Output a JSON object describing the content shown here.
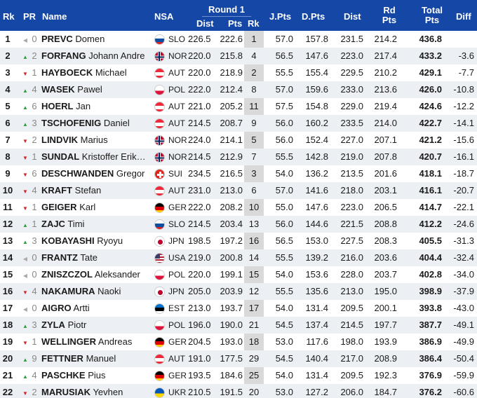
{
  "header": {
    "rk": "Rk",
    "pr": "PR",
    "name": "Name",
    "nsa": "NSA",
    "round": "Round 1",
    "dist": "Dist",
    "pts": "Pts",
    "round_rk": "Rk",
    "jpts": "J.Pts",
    "dpts": "D.Pts",
    "dist2": "Dist",
    "rd_pts": "Rd Pts",
    "total_pts": "Total Pts",
    "diff": "Diff"
  },
  "colors": {
    "header_bg": "#1447a6",
    "up": "#2e9e3e",
    "down": "#d4252b",
    "neutral": "#aaaaaa"
  },
  "rows": [
    {
      "rk": "1",
      "trend": "neutral",
      "pr": "0",
      "last": "PREVC",
      "first": "Domen",
      "nsa": "SLO",
      "dist": "226.5",
      "pts": "222.6",
      "rrk": "1",
      "jpts": "57.0",
      "dpts": "157.8",
      "odist": "231.5",
      "rdpts": "214.2",
      "total": "436.8",
      "diff": ""
    },
    {
      "rk": "2",
      "trend": "up",
      "pr": "2",
      "last": "FORFANG",
      "first": "Johann Andre",
      "nsa": "NOR",
      "dist": "220.0",
      "pts": "215.8",
      "rrk": "4",
      "jpts": "56.5",
      "dpts": "147.6",
      "odist": "223.0",
      "rdpts": "217.4",
      "total": "433.2",
      "diff": "-3.6"
    },
    {
      "rk": "3",
      "trend": "down",
      "pr": "1",
      "last": "HAYBOECK",
      "first": "Michael",
      "nsa": "AUT",
      "dist": "220.0",
      "pts": "218.9",
      "rrk": "2",
      "jpts": "55.5",
      "dpts": "155.4",
      "odist": "229.5",
      "rdpts": "210.2",
      "total": "429.1",
      "diff": "-7.7"
    },
    {
      "rk": "4",
      "trend": "up",
      "pr": "4",
      "last": "WASEK",
      "first": "Pawel",
      "nsa": "POL",
      "dist": "222.0",
      "pts": "212.4",
      "rrk": "8",
      "jpts": "57.0",
      "dpts": "159.6",
      "odist": "233.0",
      "rdpts": "213.6",
      "total": "426.0",
      "diff": "-10.8"
    },
    {
      "rk": "5",
      "trend": "up",
      "pr": "6",
      "last": "HOERL",
      "first": "Jan",
      "nsa": "AUT",
      "dist": "221.0",
      "pts": "205.2",
      "rrk": "11",
      "jpts": "57.5",
      "dpts": "154.8",
      "odist": "229.0",
      "rdpts": "219.4",
      "total": "424.6",
      "diff": "-12.2"
    },
    {
      "rk": "6",
      "trend": "up",
      "pr": "3",
      "last": "TSCHOFENIG",
      "first": "Daniel",
      "nsa": "AUT",
      "dist": "214.5",
      "pts": "208.7",
      "rrk": "9",
      "jpts": "56.0",
      "dpts": "160.2",
      "odist": "233.5",
      "rdpts": "214.0",
      "total": "422.7",
      "diff": "-14.1"
    },
    {
      "rk": "7",
      "trend": "down",
      "pr": "2",
      "last": "LINDVIK",
      "first": "Marius",
      "nsa": "NOR",
      "dist": "224.0",
      "pts": "214.1",
      "rrk": "5",
      "jpts": "56.0",
      "dpts": "152.4",
      "odist": "227.0",
      "rdpts": "207.1",
      "total": "421.2",
      "diff": "-15.6"
    },
    {
      "rk": "8",
      "trend": "down",
      "pr": "1",
      "last": "SUNDAL",
      "first": "Kristoffer Erik…",
      "nsa": "NOR",
      "dist": "214.5",
      "pts": "212.9",
      "rrk": "7",
      "jpts": "55.5",
      "dpts": "142.8",
      "odist": "219.0",
      "rdpts": "207.8",
      "total": "420.7",
      "diff": "-16.1"
    },
    {
      "rk": "9",
      "trend": "down",
      "pr": "6",
      "last": "DESCHWANDEN",
      "first": "Gregor",
      "nsa": "SUI",
      "dist": "234.5",
      "pts": "216.5",
      "rrk": "3",
      "jpts": "54.0",
      "dpts": "136.2",
      "odist": "213.5",
      "rdpts": "201.6",
      "total": "418.1",
      "diff": "-18.7"
    },
    {
      "rk": "10",
      "trend": "down",
      "pr": "4",
      "last": "KRAFT",
      "first": "Stefan",
      "nsa": "AUT",
      "dist": "231.0",
      "pts": "213.0",
      "rrk": "6",
      "jpts": "57.0",
      "dpts": "141.6",
      "odist": "218.0",
      "rdpts": "203.1",
      "total": "416.1",
      "diff": "-20.7"
    },
    {
      "rk": "11",
      "trend": "down",
      "pr": "1",
      "last": "GEIGER",
      "first": "Karl",
      "nsa": "GER",
      "dist": "222.0",
      "pts": "208.2",
      "rrk": "10",
      "jpts": "55.0",
      "dpts": "147.6",
      "odist": "223.0",
      "rdpts": "206.5",
      "total": "414.7",
      "diff": "-22.1"
    },
    {
      "rk": "12",
      "trend": "up",
      "pr": "1",
      "last": "ZAJC",
      "first": "Timi",
      "nsa": "SLO",
      "dist": "214.5",
      "pts": "203.4",
      "rrk": "13",
      "jpts": "56.0",
      "dpts": "144.6",
      "odist": "221.5",
      "rdpts": "208.8",
      "total": "412.2",
      "diff": "-24.6"
    },
    {
      "rk": "13",
      "trend": "up",
      "pr": "3",
      "last": "KOBAYASHI",
      "first": "Ryoyu",
      "nsa": "JPN",
      "dist": "198.5",
      "pts": "197.2",
      "rrk": "16",
      "jpts": "56.5",
      "dpts": "153.0",
      "odist": "227.5",
      "rdpts": "208.3",
      "total": "405.5",
      "diff": "-31.3"
    },
    {
      "rk": "14",
      "trend": "neutral",
      "pr": "0",
      "last": "FRANTZ",
      "first": "Tate",
      "nsa": "USA",
      "dist": "219.0",
      "pts": "200.8",
      "rrk": "14",
      "jpts": "55.5",
      "dpts": "139.2",
      "odist": "216.0",
      "rdpts": "203.6",
      "total": "404.4",
      "diff": "-32.4"
    },
    {
      "rk": "15",
      "trend": "neutral",
      "pr": "0",
      "last": "ZNISZCZOL",
      "first": "Aleksander",
      "nsa": "POL",
      "dist": "220.0",
      "pts": "199.1",
      "rrk": "15",
      "jpts": "54.0",
      "dpts": "153.6",
      "odist": "228.0",
      "rdpts": "203.7",
      "total": "402.8",
      "diff": "-34.0"
    },
    {
      "rk": "16",
      "trend": "down",
      "pr": "4",
      "last": "NAKAMURA",
      "first": "Naoki",
      "nsa": "JPN",
      "dist": "205.0",
      "pts": "203.9",
      "rrk": "12",
      "jpts": "55.5",
      "dpts": "135.6",
      "odist": "213.0",
      "rdpts": "195.0",
      "total": "398.9",
      "diff": "-37.9"
    },
    {
      "rk": "17",
      "trend": "neutral",
      "pr": "0",
      "last": "AIGRO",
      "first": "Artti",
      "nsa": "EST",
      "dist": "213.0",
      "pts": "193.7",
      "rrk": "17",
      "jpts": "54.0",
      "dpts": "131.4",
      "odist": "209.5",
      "rdpts": "200.1",
      "total": "393.8",
      "diff": "-43.0"
    },
    {
      "rk": "18",
      "trend": "up",
      "pr": "3",
      "last": "ZYLA",
      "first": "Piotr",
      "nsa": "POL",
      "dist": "196.0",
      "pts": "190.0",
      "rrk": "21",
      "jpts": "54.5",
      "dpts": "137.4",
      "odist": "214.5",
      "rdpts": "197.7",
      "total": "387.7",
      "diff": "-49.1"
    },
    {
      "rk": "19",
      "trend": "down",
      "pr": "1",
      "last": "WELLINGER",
      "first": "Andreas",
      "nsa": "GER",
      "dist": "204.5",
      "pts": "193.0",
      "rrk": "18",
      "jpts": "53.0",
      "dpts": "117.6",
      "odist": "198.0",
      "rdpts": "193.9",
      "total": "386.9",
      "diff": "-49.9"
    },
    {
      "rk": "20",
      "trend": "up",
      "pr": "9",
      "last": "FETTNER",
      "first": "Manuel",
      "nsa": "AUT",
      "dist": "191.0",
      "pts": "177.5",
      "rrk": "29",
      "jpts": "54.5",
      "dpts": "140.4",
      "odist": "217.0",
      "rdpts": "208.9",
      "total": "386.4",
      "diff": "-50.4"
    },
    {
      "rk": "21",
      "trend": "up",
      "pr": "4",
      "last": "PASCHKE",
      "first": "Pius",
      "nsa": "GER",
      "dist": "193.5",
      "pts": "184.6",
      "rrk": "25",
      "jpts": "54.0",
      "dpts": "131.4",
      "odist": "209.5",
      "rdpts": "192.3",
      "total": "376.9",
      "diff": "-59.9"
    },
    {
      "rk": "22",
      "trend": "down",
      "pr": "2",
      "last": "MARUSIAK",
      "first": "Yevhen",
      "nsa": "UKR",
      "dist": "210.5",
      "pts": "191.5",
      "rrk": "20",
      "jpts": "53.0",
      "dpts": "127.2",
      "odist": "206.0",
      "rdpts": "184.7",
      "total": "376.2",
      "diff": "-60.6"
    }
  ]
}
